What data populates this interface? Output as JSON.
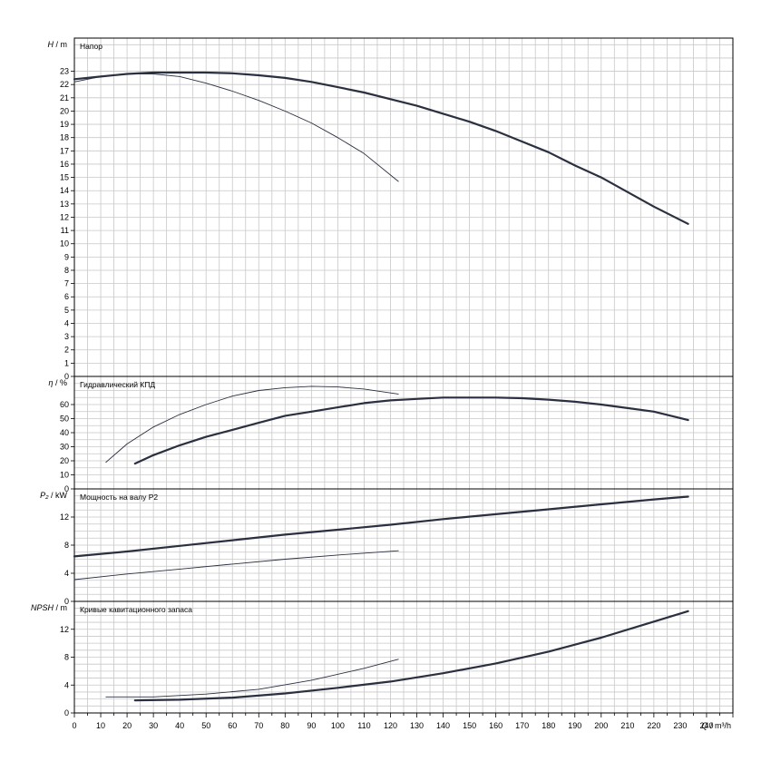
{
  "chart_data": {
    "type": "line",
    "x_axis": {
      "label_var": "Q",
      "label_unit": "m³/h",
      "range": [
        0,
        250
      ],
      "ticks": [
        0,
        10,
        20,
        30,
        40,
        50,
        60,
        70,
        80,
        90,
        100,
        110,
        120,
        130,
        140,
        150,
        160,
        170,
        180,
        190,
        200,
        210,
        220,
        230,
        240
      ],
      "tick_labels": [
        "0",
        "10",
        "20",
        "30",
        "40",
        "50",
        "60",
        "70",
        "80",
        "90",
        "100",
        "110",
        "120",
        "130",
        "140",
        "150",
        "160",
        "170",
        "180",
        "190",
        "200",
        "210",
        "220",
        "230",
        "240"
      ]
    },
    "panels": [
      {
        "id": "head",
        "title": "Напор",
        "ylabel_var": "H",
        "ylabel_unit": "m",
        "ylim": [
          0,
          25.5
        ],
        "ticks": [
          0,
          1,
          2,
          3,
          4,
          5,
          6,
          7,
          8,
          9,
          10,
          11,
          12,
          13,
          14,
          15,
          16,
          17,
          18,
          19,
          20,
          21,
          22,
          23
        ],
        "tick_labels": [
          "0",
          "1",
          "2",
          "3",
          "4",
          "5",
          "6",
          "7",
          "8",
          "9",
          "10",
          "11",
          "12",
          "13",
          "14",
          "15",
          "16",
          "17",
          "18",
          "19",
          "20",
          "21",
          "22",
          "23"
        ],
        "series": [
          {
            "style": "thick",
            "color": "#2b3040",
            "x": [
              0,
              10,
              20,
              30,
              40,
              50,
              60,
              70,
              80,
              90,
              100,
              110,
              120,
              130,
              140,
              150,
              160,
              170,
              180,
              190,
              200,
              210,
              220,
              233
            ],
            "y": [
              22.4,
              22.6,
              22.8,
              22.9,
              22.9,
              22.9,
              22.85,
              22.7,
              22.5,
              22.2,
              21.8,
              21.4,
              20.9,
              20.4,
              19.8,
              19.2,
              18.5,
              17.7,
              16.9,
              15.9,
              15.0,
              13.9,
              12.8,
              11.5
            ]
          },
          {
            "style": "thin",
            "color": "#2b3040",
            "x": [
              0,
              10,
              20,
              30,
              40,
              50,
              60,
              70,
              80,
              90,
              100,
              110,
              123
            ],
            "y": [
              22.2,
              22.6,
              22.8,
              22.8,
              22.6,
              22.1,
              21.5,
              20.8,
              20.0,
              19.1,
              18.0,
              16.8,
              14.7
            ]
          }
        ]
      },
      {
        "id": "efficiency",
        "title": "Гидравлический КПД",
        "ylabel_var": "η",
        "ylabel_unit": "%",
        "ylim": [
          0,
          80
        ],
        "ticks": [
          0,
          10,
          20,
          30,
          40,
          50,
          60
        ],
        "tick_labels": [
          "0",
          "10",
          "20",
          "30",
          "40",
          "50",
          "60"
        ],
        "series": [
          {
            "style": "thick",
            "color": "#2b3040",
            "x": [
              23,
              30,
              40,
              50,
              60,
              70,
              80,
              90,
              100,
              110,
              120,
              130,
              140,
              150,
              160,
              170,
              180,
              190,
              200,
              210,
              220,
              233
            ],
            "y": [
              18,
              24,
              31,
              37,
              42,
              47,
              52,
              55,
              58,
              61,
              63,
              64,
              65,
              65,
              65,
              64.5,
              63.5,
              62,
              60,
              57.5,
              55,
              49
            ]
          },
          {
            "style": "thin",
            "color": "#2b3040",
            "x": [
              12,
              20,
              30,
              40,
              50,
              60,
              70,
              80,
              90,
              100,
              110,
              123
            ],
            "y": [
              19,
              32,
              44,
              53,
              60,
              66,
              70,
              72,
              73,
              72.5,
              71,
              67.5
            ]
          }
        ]
      },
      {
        "id": "power",
        "title": "Мощность на валу P2",
        "ylabel_var": "P₂",
        "ylabel_unit": "kW",
        "ylim": [
          0,
          16
        ],
        "ticks": [
          0,
          4,
          8,
          12
        ],
        "tick_labels": [
          "0",
          "4",
          "8",
          "12"
        ],
        "series": [
          {
            "style": "thick",
            "color": "#2b3040",
            "x": [
              0,
              20,
              40,
              60,
              80,
              100,
              120,
              140,
              160,
              180,
              200,
              220,
              233
            ],
            "y": [
              6.4,
              7.1,
              7.9,
              8.7,
              9.5,
              10.2,
              10.9,
              11.7,
              12.4,
              13.1,
              13.8,
              14.5,
              14.9
            ]
          },
          {
            "style": "thin",
            "color": "#2b3040",
            "x": [
              0,
              20,
              40,
              60,
              80,
              100,
              123
            ],
            "y": [
              3.1,
              3.9,
              4.6,
              5.3,
              6.0,
              6.6,
              7.2
            ]
          }
        ]
      },
      {
        "id": "npsh",
        "title": "Кривые кавитационного запаса",
        "ylabel_var": "NPSH",
        "ylabel_unit": "m",
        "ylim": [
          0,
          16
        ],
        "ticks": [
          0,
          4,
          8,
          12
        ],
        "tick_labels": [
          "0",
          "4",
          "8",
          "12"
        ],
        "series": [
          {
            "style": "thick",
            "color": "#2b3040",
            "x": [
              23,
              40,
              60,
              80,
              100,
              120,
              140,
              160,
              180,
              200,
              220,
              233
            ],
            "y": [
              1.8,
              1.9,
              2.2,
              2.8,
              3.6,
              4.5,
              5.7,
              7.1,
              8.8,
              10.8,
              13.1,
              14.6
            ]
          },
          {
            "style": "thin",
            "color": "#2b3040",
            "x": [
              12,
              30,
              50,
              70,
              90,
              110,
              123
            ],
            "y": [
              2.3,
              2.3,
              2.7,
              3.4,
              4.7,
              6.4,
              7.7
            ]
          }
        ]
      }
    ],
    "grid": true
  }
}
